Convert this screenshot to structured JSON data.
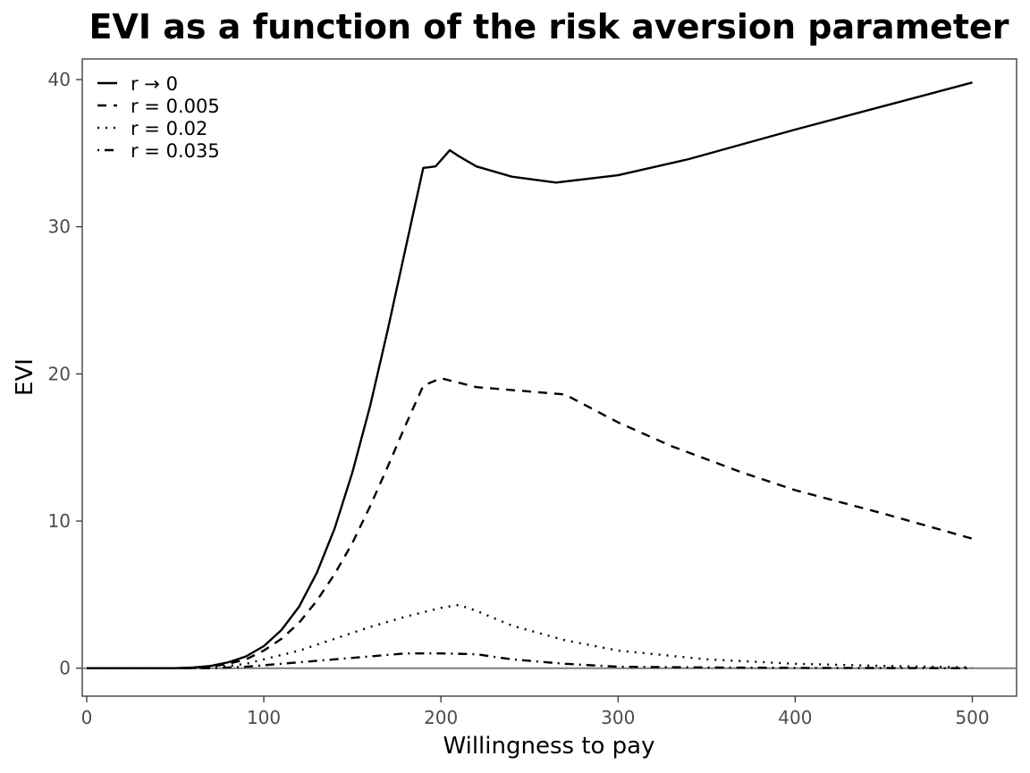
{
  "chart_data": {
    "type": "line",
    "title": "EVI as a function of the risk aversion parameter",
    "xlabel": "Willingness to pay",
    "ylabel": "EVI",
    "xlim": [
      -2.5,
      525
    ],
    "ylim": [
      -1.9,
      41.4
    ],
    "xticks": [
      0,
      100,
      200,
      300,
      400,
      500
    ],
    "yticks": [
      0,
      10,
      20,
      30,
      40
    ],
    "grid": false,
    "legend_position": "top-left",
    "hline": 0,
    "series": [
      {
        "name": "r → 0",
        "dash": "solid",
        "x": [
          0,
          50,
          60,
          70,
          80,
          90,
          100,
          110,
          120,
          130,
          140,
          150,
          160,
          170,
          180,
          190,
          197,
          205,
          210,
          220,
          240,
          265,
          300,
          340,
          400,
          450,
          500
        ],
        "y": [
          0,
          0,
          0.05,
          0.15,
          0.4,
          0.8,
          1.5,
          2.6,
          4.2,
          6.5,
          9.5,
          13.3,
          17.8,
          23.0,
          28.5,
          34.0,
          34.1,
          35.2,
          34.8,
          34.1,
          33.4,
          33.0,
          33.5,
          34.6,
          36.6,
          38.2,
          39.8
        ]
      },
      {
        "name": "r = 0.005",
        "dash": "dashed",
        "x": [
          0,
          60,
          70,
          80,
          90,
          100,
          110,
          120,
          130,
          140,
          150,
          160,
          170,
          180,
          190,
          200,
          220,
          250,
          270,
          300,
          330,
          370,
          400,
          450,
          500
        ],
        "y": [
          0,
          0,
          0.1,
          0.3,
          0.6,
          1.2,
          2.0,
          3.1,
          4.6,
          6.4,
          8.5,
          11.0,
          13.7,
          16.5,
          19.2,
          19.7,
          19.1,
          18.8,
          18.6,
          16.7,
          15.1,
          13.3,
          12.1,
          10.5,
          8.8
        ]
      },
      {
        "name": "r = 0.02",
        "dash": "dotted",
        "x": [
          0,
          60,
          70,
          80,
          90,
          100,
          120,
          140,
          160,
          180,
          200,
          210,
          220,
          240,
          270,
          300,
          350,
          400,
          450,
          500
        ],
        "y": [
          0,
          0,
          0.05,
          0.15,
          0.3,
          0.6,
          1.2,
          2.0,
          2.8,
          3.5,
          4.1,
          4.3,
          3.9,
          2.9,
          1.9,
          1.2,
          0.6,
          0.3,
          0.15,
          0.05
        ]
      },
      {
        "name": "r = 0.035",
        "dash": "dotdash",
        "x": [
          0,
          70,
          80,
          90,
          100,
          120,
          140,
          160,
          180,
          200,
          220,
          240,
          270,
          300,
          350,
          400,
          450,
          500
        ],
        "y": [
          0,
          0,
          0.05,
          0.1,
          0.2,
          0.4,
          0.6,
          0.8,
          1.0,
          1.0,
          0.95,
          0.6,
          0.3,
          0.1,
          0.05,
          0.02,
          0.01,
          0
        ]
      }
    ]
  }
}
